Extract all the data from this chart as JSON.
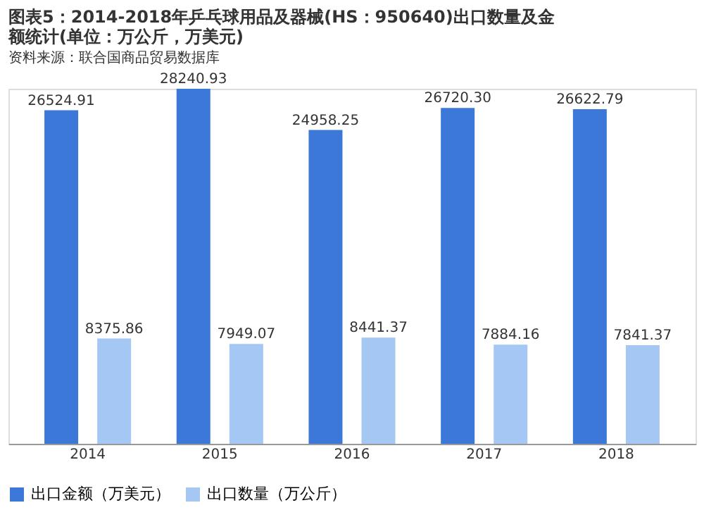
{
  "chart_data": {
    "type": "bar",
    "title": "图表5：2014-2018年乒乓球用品及器械(HS：950640)出口数量及金额统计(单位：万公斤，万美元)",
    "categories": [
      "2014",
      "2015",
      "2016",
      "2017",
      "2018"
    ],
    "series": [
      {
        "name": "出口金额（万美元）",
        "color": "#3b78d8",
        "values": [
          26524.91,
          28240.93,
          24958.25,
          26720.3,
          26622.79
        ],
        "value_labels": [
          "26524.91",
          "28240.93",
          "24958.25",
          "26720.30",
          "26622.79"
        ]
      },
      {
        "name": "出口数量（万公斤）",
        "color": "#a4c7f4",
        "values": [
          8375.86,
          7949.07,
          8441.37,
          7884.16,
          7841.37
        ],
        "value_labels": [
          "8375.86",
          "7949.07",
          "8441.37",
          "7884.16",
          "7841.37"
        ]
      }
    ],
    "legend": "bottom",
    "annotations": [
      "资料来源：联合国商品贸易数据库"
    ]
  }
}
